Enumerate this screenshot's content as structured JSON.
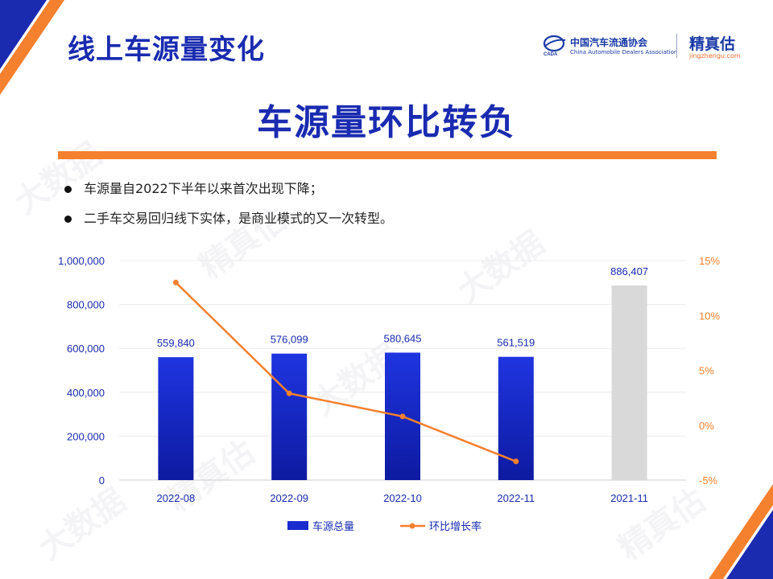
{
  "header": {
    "title": "线上车源量变化",
    "headline": "车源量环比转负"
  },
  "logos": {
    "cada_cn": "中国汽车流通协会",
    "cada_en": "China Automobile Dealers Association",
    "jzg_cn": "精真估",
    "jzg_url": "jingzhengu.com"
  },
  "bullets": [
    "车源量自2022下半年以来首次出现下降；",
    "二手车交易回归线下实体，是商业模式的又一次转型。"
  ],
  "colors": {
    "brand_blue": "#1a2bb0",
    "accent_orange": "#f5802e",
    "bar_gray": "#d9d9d9"
  },
  "chart_data": {
    "type": "bar",
    "categories": [
      "2022-08",
      "2022-09",
      "2022-10",
      "2022-11",
      "2021-11"
    ],
    "series": [
      {
        "name": "车源总量",
        "type": "bar",
        "axis": "left",
        "values": [
          559840,
          576099,
          580645,
          561519,
          886407
        ],
        "labels": [
          "559,840",
          "576,099",
          "580,645",
          "561,519",
          "886,407"
        ],
        "colors": [
          "#1a2bd0",
          "#1a2bd0",
          "#1a2bd0",
          "#1a2bd0",
          "#d9d9d9"
        ]
      },
      {
        "name": "环比增长率",
        "type": "line",
        "axis": "right",
        "values": [
          13.0,
          2.9,
          0.8,
          -3.3,
          null
        ],
        "color": "#f5802e"
      }
    ],
    "y_left": {
      "min": 0,
      "max": 1000000,
      "ticks": [
        0,
        200000,
        400000,
        600000,
        800000,
        1000000
      ],
      "tick_labels": [
        "0",
        "200,000",
        "400,000",
        "600,000",
        "800,000",
        "1,000,000"
      ]
    },
    "y_right": {
      "min": -5,
      "max": 15,
      "ticks": [
        -5,
        0,
        5,
        10,
        15
      ],
      "tick_labels": [
        "-5%",
        "0%",
        "5%",
        "10%",
        "15%"
      ]
    },
    "grid": true,
    "legend_position": "bottom"
  },
  "watermark": {
    "text_a": "精真估",
    "text_b": "大数据"
  }
}
